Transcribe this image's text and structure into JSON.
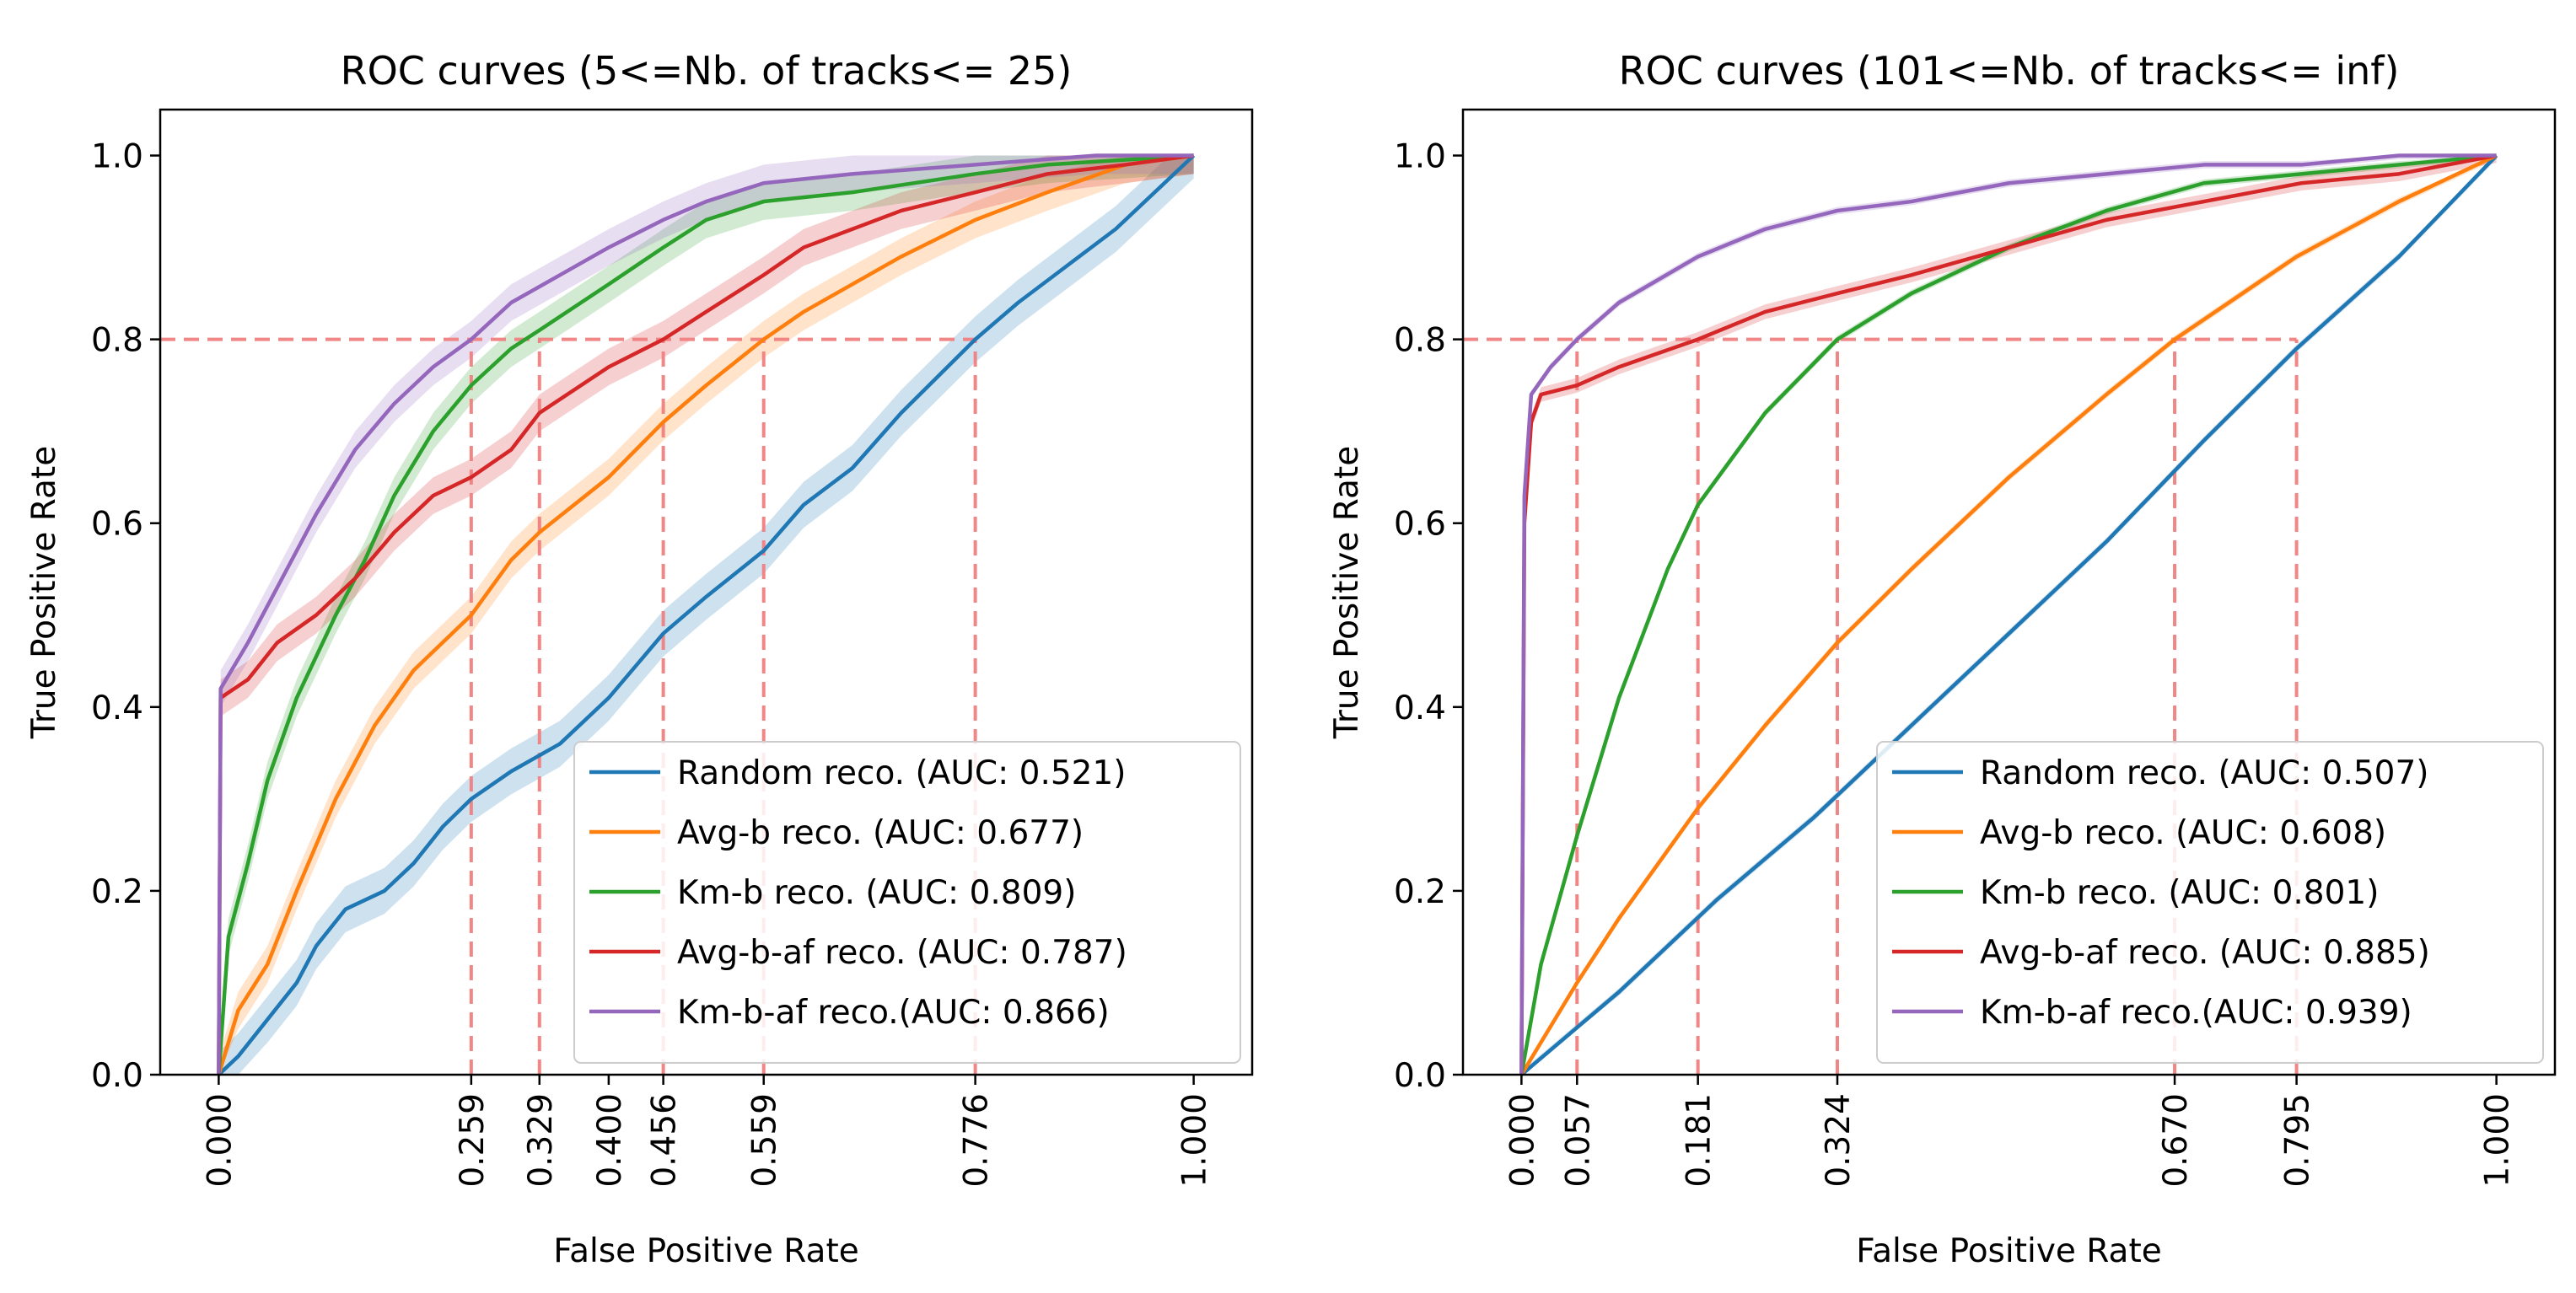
{
  "chart_data": [
    {
      "type": "line",
      "title": "ROC curves (5<=Nb. of tracks<= 25)",
      "xlabel": "False Positive Rate",
      "ylabel": "True Positive Rate",
      "xlim": [
        -0.06,
        1.06
      ],
      "ylim": [
        0.0,
        1.05
      ],
      "grid": false,
      "legend_position": "lower-right",
      "x_ticks": [
        "0.000",
        "0.259",
        "0.329",
        "0.400",
        "0.456",
        "0.559",
        "0.776",
        "1.000"
      ],
      "x_tick_values": [
        0.0,
        0.259,
        0.329,
        0.4,
        0.456,
        0.559,
        0.776,
        1.0
      ],
      "y_ticks": [
        "0.0",
        "0.2",
        "0.4",
        "0.6",
        "0.8",
        "1.0"
      ],
      "y_tick_values": [
        0.0,
        0.2,
        0.4,
        0.6,
        0.8,
        1.0
      ],
      "reference_lines": {
        "tpr": 0.8,
        "fpr": [
          0.259,
          0.329,
          0.456,
          0.559,
          0.776
        ]
      },
      "series": [
        {
          "name": "Random reco. (AUC: 0.521)",
          "color": "#1f77b4",
          "band": 0.025,
          "points": [
            [
              0.0,
              0.0
            ],
            [
              0.02,
              0.02
            ],
            [
              0.05,
              0.06
            ],
            [
              0.08,
              0.1
            ],
            [
              0.1,
              0.14
            ],
            [
              0.13,
              0.18
            ],
            [
              0.17,
              0.2
            ],
            [
              0.2,
              0.23
            ],
            [
              0.23,
              0.27
            ],
            [
              0.259,
              0.3
            ],
            [
              0.3,
              0.33
            ],
            [
              0.35,
              0.36
            ],
            [
              0.4,
              0.41
            ],
            [
              0.456,
              0.48
            ],
            [
              0.5,
              0.52
            ],
            [
              0.559,
              0.57
            ],
            [
              0.6,
              0.62
            ],
            [
              0.65,
              0.66
            ],
            [
              0.7,
              0.72
            ],
            [
              0.776,
              0.8
            ],
            [
              0.82,
              0.84
            ],
            [
              0.87,
              0.88
            ],
            [
              0.92,
              0.92
            ],
            [
              0.97,
              0.97
            ],
            [
              1.0,
              1.0
            ]
          ]
        },
        {
          "name": "Avg-b reco. (AUC: 0.677)",
          "color": "#ff7f0e",
          "band": 0.02,
          "points": [
            [
              0.0,
              0.0
            ],
            [
              0.02,
              0.07
            ],
            [
              0.05,
              0.12
            ],
            [
              0.08,
              0.2
            ],
            [
              0.12,
              0.3
            ],
            [
              0.16,
              0.38
            ],
            [
              0.2,
              0.44
            ],
            [
              0.259,
              0.5
            ],
            [
              0.3,
              0.56
            ],
            [
              0.329,
              0.59
            ],
            [
              0.4,
              0.65
            ],
            [
              0.456,
              0.71
            ],
            [
              0.5,
              0.75
            ],
            [
              0.559,
              0.8
            ],
            [
              0.6,
              0.83
            ],
            [
              0.65,
              0.86
            ],
            [
              0.7,
              0.89
            ],
            [
              0.776,
              0.93
            ],
            [
              0.85,
              0.96
            ],
            [
              0.93,
              0.99
            ],
            [
              1.0,
              1.0
            ]
          ]
        },
        {
          "name": "Km-b reco. (AUC: 0.809)",
          "color": "#2ca02c",
          "band": 0.02,
          "points": [
            [
              0.0,
              0.0
            ],
            [
              0.01,
              0.15
            ],
            [
              0.03,
              0.23
            ],
            [
              0.05,
              0.32
            ],
            [
              0.08,
              0.41
            ],
            [
              0.12,
              0.5
            ],
            [
              0.15,
              0.56
            ],
            [
              0.18,
              0.63
            ],
            [
              0.22,
              0.7
            ],
            [
              0.259,
              0.75
            ],
            [
              0.3,
              0.79
            ],
            [
              0.329,
              0.81
            ],
            [
              0.4,
              0.86
            ],
            [
              0.456,
              0.9
            ],
            [
              0.5,
              0.93
            ],
            [
              0.559,
              0.95
            ],
            [
              0.65,
              0.96
            ],
            [
              0.776,
              0.98
            ],
            [
              0.85,
              0.99
            ],
            [
              1.0,
              1.0
            ]
          ]
        },
        {
          "name": "Avg-b-af reco. (AUC: 0.787)",
          "color": "#d62728",
          "band": 0.02,
          "points": [
            [
              0.0,
              0.0
            ],
            [
              0.002,
              0.41
            ],
            [
              0.03,
              0.43
            ],
            [
              0.06,
              0.47
            ],
            [
              0.1,
              0.5
            ],
            [
              0.14,
              0.54
            ],
            [
              0.18,
              0.59
            ],
            [
              0.22,
              0.63
            ],
            [
              0.259,
              0.65
            ],
            [
              0.3,
              0.68
            ],
            [
              0.329,
              0.72
            ],
            [
              0.4,
              0.77
            ],
            [
              0.456,
              0.8
            ],
            [
              0.5,
              0.83
            ],
            [
              0.559,
              0.87
            ],
            [
              0.6,
              0.9
            ],
            [
              0.65,
              0.92
            ],
            [
              0.7,
              0.94
            ],
            [
              0.776,
              0.96
            ],
            [
              0.85,
              0.98
            ],
            [
              0.93,
              0.99
            ],
            [
              1.0,
              1.0
            ]
          ]
        },
        {
          "name": "Km-b-af reco.(AUC: 0.866)",
          "color": "#9467bd",
          "band": 0.02,
          "points": [
            [
              0.0,
              0.0
            ],
            [
              0.002,
              0.42
            ],
            [
              0.03,
              0.47
            ],
            [
              0.06,
              0.53
            ],
            [
              0.1,
              0.61
            ],
            [
              0.14,
              0.68
            ],
            [
              0.18,
              0.73
            ],
            [
              0.22,
              0.77
            ],
            [
              0.259,
              0.8
            ],
            [
              0.3,
              0.84
            ],
            [
              0.35,
              0.87
            ],
            [
              0.4,
              0.9
            ],
            [
              0.456,
              0.93
            ],
            [
              0.5,
              0.95
            ],
            [
              0.559,
              0.97
            ],
            [
              0.65,
              0.98
            ],
            [
              0.776,
              0.99
            ],
            [
              0.9,
              1.0
            ],
            [
              1.0,
              1.0
            ]
          ]
        }
      ]
    },
    {
      "type": "line",
      "title": "ROC curves (101<=Nb. of tracks<= inf)",
      "xlabel": "False Positive Rate",
      "ylabel": "True Positive Rate",
      "xlim": [
        -0.06,
        1.06
      ],
      "ylim": [
        0.0,
        1.05
      ],
      "grid": false,
      "legend_position": "lower-right",
      "x_ticks": [
        "0.000",
        "0.057",
        "0.181",
        "0.324",
        "0.670",
        "0.795",
        "1.000"
      ],
      "x_tick_values": [
        0.0,
        0.057,
        0.181,
        0.324,
        0.67,
        0.795,
        1.0
      ],
      "y_ticks": [
        "0.0",
        "0.2",
        "0.4",
        "0.6",
        "0.8",
        "1.0"
      ],
      "y_tick_values": [
        0.0,
        0.2,
        0.4,
        0.6,
        0.8,
        1.0
      ],
      "reference_lines": {
        "tpr": 0.8,
        "fpr": [
          0.057,
          0.181,
          0.324,
          0.67,
          0.795
        ]
      },
      "series": [
        {
          "name": "Random reco. (AUC: 0.507)",
          "color": "#1f77b4",
          "band": 0.004,
          "points": [
            [
              0.0,
              0.0
            ],
            [
              0.1,
              0.09
            ],
            [
              0.2,
              0.19
            ],
            [
              0.3,
              0.28
            ],
            [
              0.4,
              0.38
            ],
            [
              0.5,
              0.48
            ],
            [
              0.6,
              0.58
            ],
            [
              0.7,
              0.69
            ],
            [
              0.795,
              0.79
            ],
            [
              0.9,
              0.89
            ],
            [
              1.0,
              1.0
            ]
          ]
        },
        {
          "name": "Avg-b reco. (AUC: 0.608)",
          "color": "#ff7f0e",
          "band": 0.004,
          "points": [
            [
              0.0,
              0.0
            ],
            [
              0.057,
              0.1
            ],
            [
              0.1,
              0.17
            ],
            [
              0.181,
              0.29
            ],
            [
              0.25,
              0.38
            ],
            [
              0.324,
              0.47
            ],
            [
              0.4,
              0.55
            ],
            [
              0.5,
              0.65
            ],
            [
              0.6,
              0.74
            ],
            [
              0.67,
              0.8
            ],
            [
              0.795,
              0.89
            ],
            [
              0.9,
              0.95
            ],
            [
              1.0,
              1.0
            ]
          ]
        },
        {
          "name": "Km-b reco. (AUC: 0.801)",
          "color": "#2ca02c",
          "band": 0.004,
          "points": [
            [
              0.0,
              0.0
            ],
            [
              0.02,
              0.12
            ],
            [
              0.057,
              0.26
            ],
            [
              0.1,
              0.41
            ],
            [
              0.15,
              0.55
            ],
            [
              0.181,
              0.62
            ],
            [
              0.25,
              0.72
            ],
            [
              0.324,
              0.8
            ],
            [
              0.4,
              0.85
            ],
            [
              0.5,
              0.9
            ],
            [
              0.6,
              0.94
            ],
            [
              0.7,
              0.97
            ],
            [
              0.8,
              0.98
            ],
            [
              0.9,
              0.99
            ],
            [
              1.0,
              1.0
            ]
          ]
        },
        {
          "name": "Avg-b-af reco. (AUC: 0.885)",
          "color": "#d62728",
          "band": 0.008,
          "points": [
            [
              0.0,
              0.0
            ],
            [
              0.003,
              0.6
            ],
            [
              0.01,
              0.71
            ],
            [
              0.02,
              0.74
            ],
            [
              0.057,
              0.75
            ],
            [
              0.1,
              0.77
            ],
            [
              0.181,
              0.8
            ],
            [
              0.25,
              0.83
            ],
            [
              0.324,
              0.85
            ],
            [
              0.4,
              0.87
            ],
            [
              0.5,
              0.9
            ],
            [
              0.6,
              0.93
            ],
            [
              0.7,
              0.95
            ],
            [
              0.8,
              0.97
            ],
            [
              0.9,
              0.98
            ],
            [
              1.0,
              1.0
            ]
          ]
        },
        {
          "name": "Km-b-af reco.(AUC: 0.939)",
          "color": "#9467bd",
          "band": 0.004,
          "points": [
            [
              0.0,
              0.0
            ],
            [
              0.003,
              0.63
            ],
            [
              0.01,
              0.74
            ],
            [
              0.03,
              0.77
            ],
            [
              0.057,
              0.8
            ],
            [
              0.1,
              0.84
            ],
            [
              0.181,
              0.89
            ],
            [
              0.25,
              0.92
            ],
            [
              0.324,
              0.94
            ],
            [
              0.4,
              0.95
            ],
            [
              0.5,
              0.97
            ],
            [
              0.6,
              0.98
            ],
            [
              0.7,
              0.99
            ],
            [
              0.8,
              0.99
            ],
            [
              0.9,
              1.0
            ],
            [
              1.0,
              1.0
            ]
          ]
        }
      ]
    }
  ]
}
